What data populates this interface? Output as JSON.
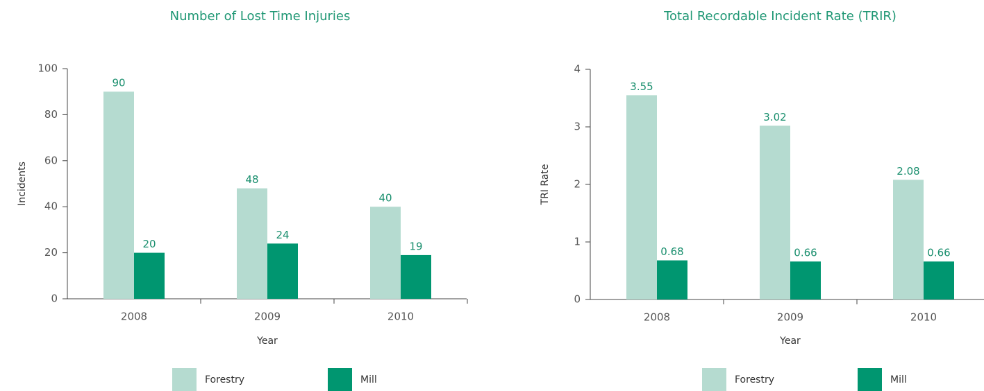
{
  "chart_data": [
    {
      "type": "bar",
      "title": "Number of Lost Time Injuries",
      "x_label": "Year",
      "y_label": "Incidents",
      "categories": [
        "2008",
        "2009",
        "2010"
      ],
      "series": [
        {
          "name": "Forestry",
          "color": "#b5dbd0",
          "values": [
            90,
            48,
            40
          ]
        },
        {
          "name": "Mill",
          "color": "#009670",
          "values": [
            20,
            24,
            19
          ]
        }
      ],
      "ylim": [
        0,
        100
      ],
      "yticks": [
        0,
        20,
        40,
        60,
        80,
        100
      ],
      "grid": false,
      "legend": "bottom"
    },
    {
      "type": "bar",
      "title": "Total Recordable Incident Rate (TRIR)",
      "x_label": "Year",
      "y_label": "TRI Rate",
      "categories": [
        "2008",
        "2009",
        "2010"
      ],
      "series": [
        {
          "name": "Forestry",
          "color": "#b5dbd0",
          "values": [
            3.55,
            3.02,
            2.08
          ]
        },
        {
          "name": "Mill",
          "color": "#009670",
          "values": [
            0.68,
            0.66,
            0.66
          ]
        }
      ],
      "ylim": [
        0,
        4
      ],
      "yticks": [
        0,
        1,
        2,
        3,
        4
      ],
      "grid": false,
      "legend": "bottom"
    }
  ]
}
